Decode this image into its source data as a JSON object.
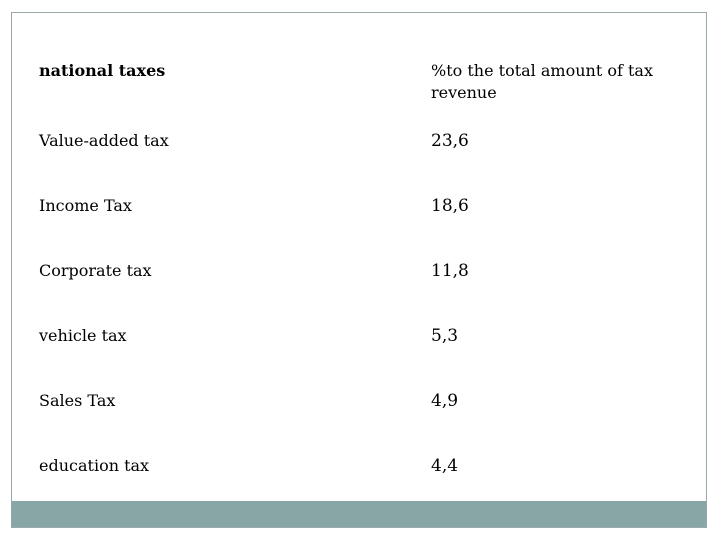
{
  "table": {
    "header": {
      "name": "national taxes",
      "value": "%to the total amount of tax revenue"
    },
    "rows": [
      {
        "name": "Value-added tax",
        "value": "23,6"
      },
      {
        "name": "Income Tax",
        "value": "18,6"
      },
      {
        "name": "Corporate tax",
        "value": "11,8"
      },
      {
        "name": "vehicle tax",
        "value": "5,3"
      },
      {
        "name": "Sales Tax",
        "value": "4,9"
      },
      {
        "name": "education tax",
        "value": "4,4"
      }
    ]
  },
  "colors": {
    "footer_bar": "#89a6a6",
    "frame_border": "#9aa9a9"
  }
}
